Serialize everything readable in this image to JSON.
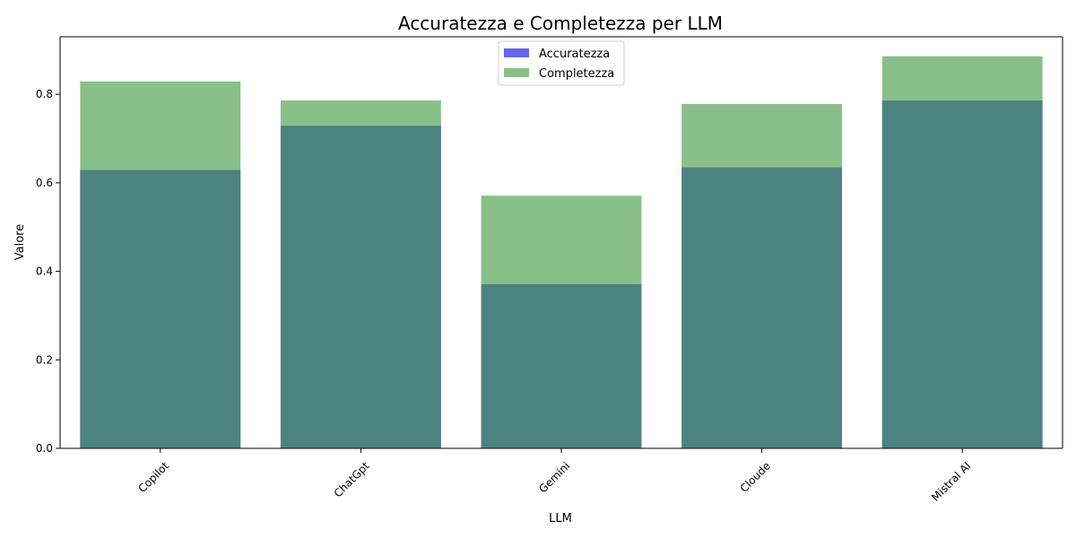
{
  "chart_data": {
    "type": "bar",
    "title": "Accuratezza e Completezza per LLM",
    "xlabel": "LLM",
    "ylabel": "Valore",
    "categories": [
      "Copilot",
      "ChatGpt",
      "Gemini",
      "Cloude",
      "Mistral AI"
    ],
    "series": [
      {
        "name": "Accuratezza",
        "values": [
          0.629,
          0.729,
          0.371,
          0.635,
          0.786
        ],
        "color": "#0000e0",
        "opacity": 0.6
      },
      {
        "name": "Completezza",
        "values": [
          0.829,
          0.786,
          0.571,
          0.778,
          0.886
        ],
        "color": "#3a963a",
        "opacity": 0.6
      }
    ],
    "ylim": [
      0,
      0.93
    ],
    "yticks": [
      "0.0",
      "0.2",
      "0.4",
      "0.6",
      "0.8"
    ],
    "legend_position": "top-center",
    "xtick_rotation": 45,
    "grid": false
  }
}
